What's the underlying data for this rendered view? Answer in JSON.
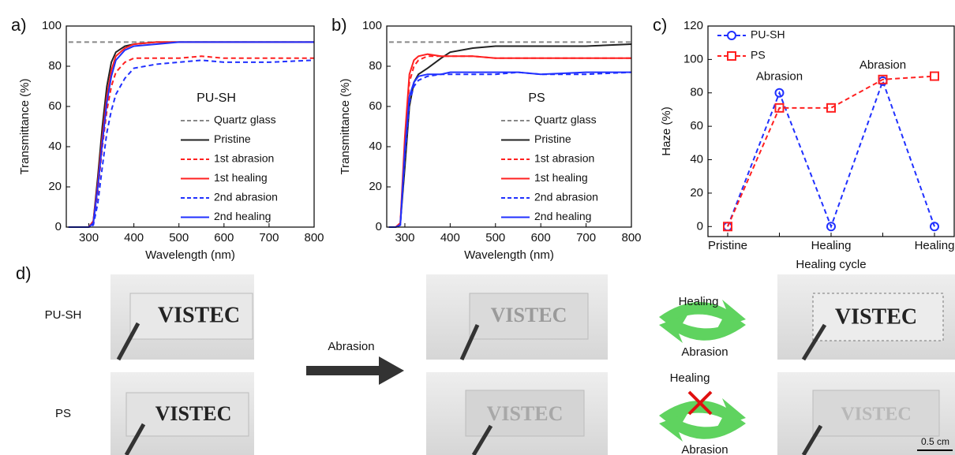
{
  "chart_data": [
    {
      "type": "line",
      "label": "a)",
      "annotation": "PU-SH",
      "xlabel": "Wavelength (nm)",
      "ylabel": "Transmittance (%)",
      "xlim": [
        250,
        800
      ],
      "xticks": [
        300,
        400,
        500,
        600,
        700,
        800
      ],
      "ylim": [
        0,
        100
      ],
      "yticks": [
        0,
        20,
        40,
        60,
        80,
        100
      ],
      "x": [
        255,
        300,
        310,
        320,
        330,
        340,
        350,
        360,
        380,
        400,
        450,
        500,
        550,
        600,
        700,
        800
      ],
      "series": [
        {
          "name": "Quartz glass",
          "color": "#888888",
          "dash": true,
          "values": [
            92,
            92,
            92,
            92,
            92,
            92,
            92,
            92,
            92,
            92,
            92,
            92,
            92,
            92,
            92,
            92
          ]
        },
        {
          "name": "Pristine",
          "color": "#222222",
          "dash": false,
          "values": [
            0,
            0,
            3,
            25,
            50,
            70,
            82,
            87,
            90,
            91,
            92,
            92,
            92,
            92,
            92,
            92
          ]
        },
        {
          "name": "1st abrasion",
          "color": "#ff2020",
          "dash": true,
          "values": [
            0,
            0,
            2,
            18,
            40,
            58,
            70,
            77,
            82,
            84,
            84,
            84,
            85,
            84,
            84,
            84
          ]
        },
        {
          "name": "1st healing",
          "color": "#ff2020",
          "dash": false,
          "values": [
            0,
            0,
            3,
            22,
            45,
            65,
            78,
            85,
            89,
            91,
            92,
            92,
            92,
            92,
            92,
            92
          ]
        },
        {
          "name": "2nd abrasion",
          "color": "#2030ff",
          "dash": true,
          "values": [
            0,
            0,
            1,
            12,
            30,
            47,
            58,
            66,
            74,
            79,
            81,
            82,
            83,
            82,
            82,
            83
          ]
        },
        {
          "name": "2nd healing",
          "color": "#2030ff",
          "dash": false,
          "values": [
            0,
            0,
            2,
            20,
            42,
            62,
            75,
            83,
            88,
            90,
            91,
            92,
            92,
            92,
            92,
            92
          ]
        }
      ]
    },
    {
      "type": "line",
      "label": "b)",
      "annotation": "PS",
      "xlabel": "Wavelength (nm)",
      "ylabel": "Transmittance (%)",
      "xlim": [
        260,
        800
      ],
      "xticks": [
        300,
        400,
        500,
        600,
        700,
        800
      ],
      "ylim": [
        0,
        100
      ],
      "yticks": [
        0,
        20,
        40,
        60,
        80,
        100
      ],
      "x": [
        265,
        280,
        290,
        300,
        310,
        320,
        330,
        350,
        380,
        400,
        450,
        500,
        550,
        600,
        700,
        800
      ],
      "series": [
        {
          "name": "Quartz glass",
          "color": "#888888",
          "dash": true,
          "values": [
            92,
            92,
            92,
            92,
            92,
            92,
            92,
            92,
            92,
            92,
            92,
            92,
            92,
            92,
            92,
            92
          ]
        },
        {
          "name": "Pristine",
          "color": "#222222",
          "dash": false,
          "values": [
            0,
            0,
            2,
            30,
            60,
            72,
            76,
            79,
            84,
            87,
            89,
            90,
            90,
            90,
            90,
            91
          ]
        },
        {
          "name": "1st abrasion",
          "color": "#ff2020",
          "dash": true,
          "values": [
            0,
            0,
            2,
            40,
            72,
            80,
            83,
            85,
            85,
            85,
            85,
            84,
            84,
            84,
            84,
            84
          ]
        },
        {
          "name": "1st healing",
          "color": "#ff2020",
          "dash": false,
          "values": [
            0,
            0,
            2,
            45,
            76,
            83,
            85,
            86,
            85,
            85,
            85,
            84,
            84,
            84,
            84,
            84
          ]
        },
        {
          "name": "2nd abrasion",
          "color": "#2030ff",
          "dash": true,
          "values": [
            0,
            0,
            1,
            35,
            62,
            70,
            73,
            75,
            76,
            76,
            76,
            76,
            77,
            76,
            76,
            77
          ]
        },
        {
          "name": "2nd healing",
          "color": "#2030ff",
          "dash": false,
          "values": [
            0,
            0,
            1,
            38,
            65,
            72,
            75,
            76,
            76,
            77,
            77,
            77,
            77,
            76,
            77,
            77
          ]
        }
      ]
    },
    {
      "type": "line",
      "label": "c)",
      "annotations": [
        "Abrasion",
        "Abrasion"
      ],
      "xlabel": "Healing cycle",
      "ylabel": "Haze (%)",
      "ylim": [
        -6,
        120
      ],
      "yticks": [
        0,
        20,
        40,
        60,
        80,
        100,
        120
      ],
      "categories": [
        "Pristine",
        null,
        "Healing",
        null,
        "Healing"
      ],
      "series": [
        {
          "name": "PU-SH",
          "color": "#2030ff",
          "dash": true,
          "marker": "circle",
          "values": [
            0,
            80,
            0,
            87,
            0
          ]
        },
        {
          "name": "PS",
          "color": "#ff2020",
          "dash": true,
          "marker": "square",
          "values": [
            0,
            71,
            71,
            88,
            90
          ]
        }
      ]
    }
  ],
  "panel_d": {
    "label": "d)",
    "rows": [
      "PU-SH",
      "PS"
    ],
    "arrow": "Abrasion",
    "cycle_top": [
      "Healing",
      "Abrasion"
    ],
    "cycle_bottom": [
      "Healing",
      "Abrasion"
    ],
    "photos": [
      "VISTEC",
      "VISTEC",
      "VISTEC",
      "VISTEC",
      "VISTEC",
      "VISTEC"
    ],
    "scale": "0.5 cm"
  }
}
